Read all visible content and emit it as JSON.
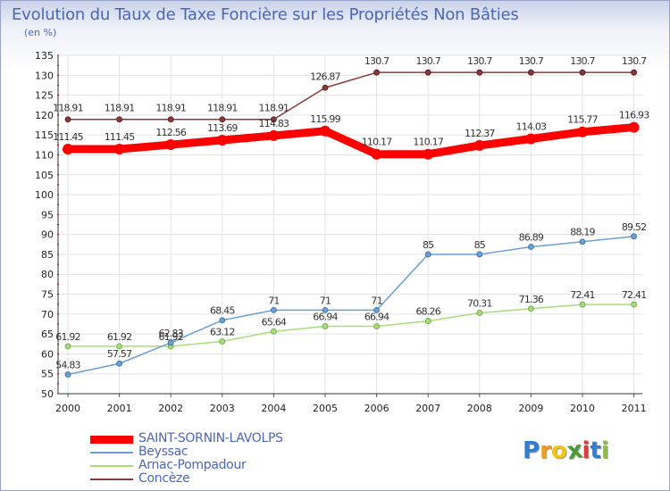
{
  "title": "Evolution du Taux de Taxe Foncière sur les Propriétés Non Bâties",
  "subtitle": "(en %)",
  "logo": {
    "text": "Proxiti",
    "letters": [
      "P",
      "r",
      "o",
      "x",
      "i",
      "t",
      "i"
    ],
    "colors": [
      "#2e7fd0",
      "#f29a1a",
      "#f2c51a",
      "#4a9a3a",
      "#e23a3a",
      "#2e7fd0",
      "#8abf3a"
    ]
  },
  "chart_data": {
    "type": "line",
    "title": "Evolution du Taux de Taxe Foncière sur les Propriétés Non Bâties",
    "ylabel": "(en %)",
    "xlabel": "",
    "x": [
      "2000",
      "2001",
      "2002",
      "2003",
      "2004",
      "2005",
      "2006",
      "2007",
      "2008",
      "2009",
      "2010",
      "2011"
    ],
    "ylim": [
      50,
      135
    ],
    "yticks": [
      50,
      55,
      60,
      65,
      70,
      75,
      80,
      85,
      90,
      95,
      100,
      105,
      110,
      115,
      120,
      125,
      130,
      135
    ],
    "grid": true,
    "series": [
      {
        "name": "SAINT-SORNIN-LAVOLPS",
        "color": "#ff0000",
        "width": 9,
        "marker": 6,
        "values": [
          111.45,
          111.45,
          112.56,
          113.69,
          114.83,
          115.99,
          110.17,
          110.17,
          112.37,
          114.03,
          115.77,
          116.93
        ],
        "labels": [
          "111.45",
          "111.45",
          "112.56",
          "113.69",
          "114.83",
          "115.99",
          "110.17",
          "110.17",
          "112.37",
          "114.03",
          "115.77",
          "116.93"
        ]
      },
      {
        "name": "Beyssac",
        "color": "#6a9fd4",
        "width": 1.5,
        "marker": 3,
        "values": [
          54.83,
          57.57,
          62.83,
          68.45,
          71,
          71,
          71,
          85,
          85,
          86.89,
          88.19,
          89.52
        ],
        "labels": [
          "54.83",
          "57.57",
          "62.83",
          "68.45",
          "71",
          "71",
          "71",
          "85",
          "85",
          "86.89",
          "88.19",
          "89.52"
        ]
      },
      {
        "name": "Arnac-Pompadour",
        "color": "#a6dd7a",
        "width": 1.5,
        "marker": 3,
        "values": [
          61.92,
          61.92,
          61.92,
          63.12,
          65.64,
          66.94,
          66.94,
          68.26,
          70.31,
          71.36,
          72.41,
          72.41
        ],
        "labels": [
          "61.92",
          "61.92",
          "61.92",
          "63.12",
          "65.64",
          "66.94",
          "66.94",
          "68.26",
          "70.31",
          "71.36",
          "72.41",
          "72.41"
        ]
      },
      {
        "name": "Concèze",
        "color": "#8a3a3a",
        "width": 1.5,
        "marker": 3,
        "values": [
          118.91,
          118.91,
          118.91,
          118.91,
          118.91,
          126.87,
          130.7,
          130.7,
          130.7,
          130.7,
          130.7,
          130.7
        ],
        "labels": [
          "118.91",
          "118.91",
          "118.91",
          "118.91",
          "118.91",
          "126.87",
          "130.7",
          "130.7",
          "130.7",
          "130.7",
          "130.7",
          "130.7"
        ]
      }
    ]
  }
}
